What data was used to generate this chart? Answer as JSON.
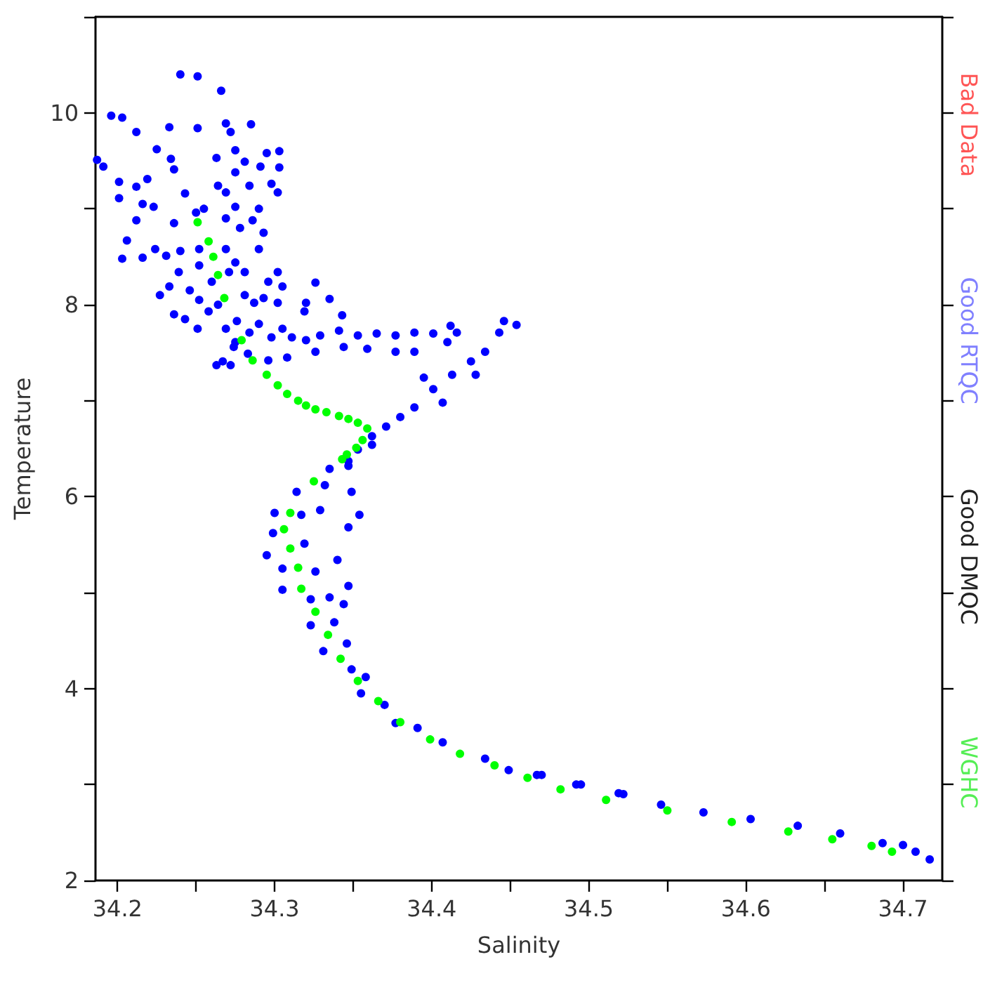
{
  "chart_data": {
    "type": "scatter",
    "xlabel": "Salinity",
    "ylabel": "Temperature",
    "xlim": [
      34.186,
      34.725
    ],
    "ylim": [
      2,
      11
    ],
    "xticks": [
      34.2,
      {
        "value": 34.25,
        "label": null
      },
      34.3,
      {
        "value": 34.35,
        "label": null
      },
      34.4,
      {
        "value": 34.45,
        "label": null
      },
      34.5,
      {
        "value": 34.55,
        "label": null
      },
      34.6,
      {
        "value": 34.65,
        "label": null
      },
      34.7
    ],
    "yticks": [
      2,
      {
        "value": 3,
        "label": null
      },
      4,
      {
        "value": 5,
        "label": null
      },
      6,
      {
        "value": 7,
        "label": null
      },
      8,
      {
        "value": 9,
        "label": null
      },
      10,
      {
        "value": 11,
        "label": null
      }
    ],
    "grid": false,
    "marker": "circle",
    "annotations": [
      "Bad Data",
      "Good RTQC",
      "Good DMQC",
      "WGHC"
    ],
    "series": [
      {
        "color": "#0000ff",
        "x": [
          34.24,
          34.251,
          34.266,
          34.196,
          34.203,
          34.187,
          34.191,
          34.212,
          34.233,
          34.251,
          34.269,
          34.285,
          34.272,
          34.225,
          34.234,
          34.263,
          34.275,
          34.281,
          34.295,
          34.303,
          34.303,
          34.291,
          34.275,
          34.236,
          34.201,
          34.212,
          34.219,
          34.201,
          34.216,
          34.223,
          34.243,
          34.264,
          34.269,
          34.284,
          34.298,
          34.302,
          34.269,
          34.275,
          34.255,
          34.25,
          34.29,
          34.212,
          34.206,
          34.203,
          34.216,
          34.224,
          34.236,
          34.24,
          34.252,
          34.231,
          34.239,
          34.252,
          34.269,
          34.278,
          34.286,
          34.293,
          34.29,
          34.275,
          34.281,
          34.271,
          34.302,
          34.305,
          34.296,
          34.227,
          34.233,
          34.246,
          34.252,
          34.26,
          34.264,
          34.281,
          34.287,
          34.293,
          34.302,
          34.326,
          34.236,
          34.243,
          34.251,
          34.258,
          34.269,
          34.276,
          34.284,
          34.29,
          34.298,
          34.305,
          34.311,
          34.32,
          34.319,
          34.335,
          34.343,
          34.32,
          34.329,
          34.341,
          34.353,
          34.365,
          34.377,
          34.389,
          34.401,
          34.412,
          34.416,
          34.41,
          34.389,
          34.377,
          34.359,
          34.344,
          34.326,
          34.308,
          34.296,
          34.283,
          34.275,
          34.263,
          34.272,
          34.267,
          34.274,
          34.454,
          34.446,
          34.443,
          34.434,
          34.425,
          34.413,
          34.401,
          34.389,
          34.38,
          34.371,
          34.362,
          34.395,
          34.428,
          34.407,
          34.353,
          34.347,
          34.362,
          34.347,
          34.335,
          34.314,
          34.332,
          34.349,
          34.3,
          34.299,
          34.295,
          34.317,
          34.329,
          34.347,
          34.354,
          34.319,
          34.34,
          34.305,
          34.326,
          34.347,
          34.305,
          34.323,
          34.335,
          34.344,
          34.323,
          34.338,
          34.331,
          34.346,
          34.349,
          34.358,
          34.355,
          34.37,
          34.377,
          34.391,
          34.407,
          34.434,
          34.449,
          34.467,
          34.492,
          34.519,
          34.47,
          34.495,
          34.522,
          34.546,
          34.573,
          34.603,
          34.633,
          34.66,
          34.687,
          34.708,
          34.717,
          34.7
        ],
        "values": [
          10.4,
          10.38,
          10.23,
          9.97,
          9.95,
          9.51,
          9.44,
          9.8,
          9.85,
          9.84,
          9.89,
          9.88,
          9.8,
          9.62,
          9.52,
          9.53,
          9.61,
          9.49,
          9.58,
          9.6,
          9.43,
          9.44,
          9.38,
          9.41,
          9.28,
          9.23,
          9.31,
          9.11,
          9.05,
          9.02,
          9.16,
          9.24,
          9.17,
          9.24,
          9.26,
          9.17,
          8.9,
          9.02,
          9.0,
          8.96,
          9.0,
          8.88,
          8.67,
          8.48,
          8.49,
          8.58,
          8.85,
          8.56,
          8.58,
          8.51,
          8.34,
          8.41,
          8.58,
          8.8,
          8.88,
          8.75,
          8.58,
          8.44,
          8.34,
          8.34,
          8.34,
          8.19,
          8.24,
          8.1,
          8.19,
          8.15,
          8.05,
          8.24,
          8.0,
          8.1,
          8.02,
          8.07,
          8.02,
          8.23,
          7.9,
          7.85,
          7.75,
          7.93,
          7.75,
          7.83,
          7.71,
          7.8,
          7.66,
          7.75,
          7.66,
          8.02,
          7.93,
          8.06,
          7.89,
          7.63,
          7.68,
          7.73,
          7.68,
          7.7,
          7.68,
          7.71,
          7.7,
          7.78,
          7.71,
          7.61,
          7.51,
          7.51,
          7.54,
          7.56,
          7.51,
          7.45,
          7.42,
          7.49,
          7.61,
          7.37,
          7.37,
          7.41,
          7.56,
          7.79,
          7.83,
          7.71,
          7.51,
          7.41,
          7.27,
          7.12,
          6.93,
          6.83,
          6.73,
          6.63,
          7.24,
          7.27,
          6.98,
          6.49,
          6.37,
          6.54,
          6.32,
          6.29,
          6.05,
          6.12,
          6.05,
          5.83,
          5.62,
          5.39,
          5.81,
          5.86,
          5.68,
          5.81,
          5.51,
          5.34,
          5.25,
          5.22,
          5.07,
          5.03,
          4.93,
          4.95,
          4.88,
          4.66,
          4.69,
          4.39,
          4.47,
          4.2,
          4.12,
          3.95,
          3.83,
          3.64,
          3.59,
          3.44,
          3.27,
          3.15,
          3.1,
          3.0,
          2.91,
          3.1,
          3.0,
          2.9,
          2.79,
          2.71,
          2.64,
          2.57,
          2.49,
          2.39,
          2.3,
          2.22,
          2.37
        ]
      },
      {
        "color": "#00ff00",
        "x": [
          34.251,
          34.258,
          34.261,
          34.264,
          34.268,
          34.279,
          34.286,
          34.295,
          34.302,
          34.308,
          34.315,
          34.32,
          34.326,
          34.333,
          34.341,
          34.347,
          34.353,
          34.359,
          34.356,
          34.352,
          34.346,
          34.343,
          34.325,
          34.31,
          34.306,
          34.31,
          34.315,
          34.317,
          34.326,
          34.334,
          34.342,
          34.353,
          34.366,
          34.38,
          34.399,
          34.418,
          34.44,
          34.461,
          34.482,
          34.511,
          34.55,
          34.591,
          34.627,
          34.655,
          34.68,
          34.693
        ],
        "values": [
          8.86,
          8.66,
          8.5,
          8.31,
          8.07,
          7.63,
          7.42,
          7.27,
          7.16,
          7.07,
          7.0,
          6.95,
          6.91,
          6.88,
          6.84,
          6.81,
          6.77,
          6.71,
          6.59,
          6.51,
          6.44,
          6.39,
          6.16,
          5.83,
          5.66,
          5.46,
          5.26,
          5.04,
          4.8,
          4.56,
          4.31,
          4.08,
          3.87,
          3.65,
          3.47,
          3.32,
          3.2,
          3.07,
          2.95,
          2.84,
          2.73,
          2.61,
          2.51,
          2.43,
          2.36,
          2.3
        ]
      }
    ]
  }
}
